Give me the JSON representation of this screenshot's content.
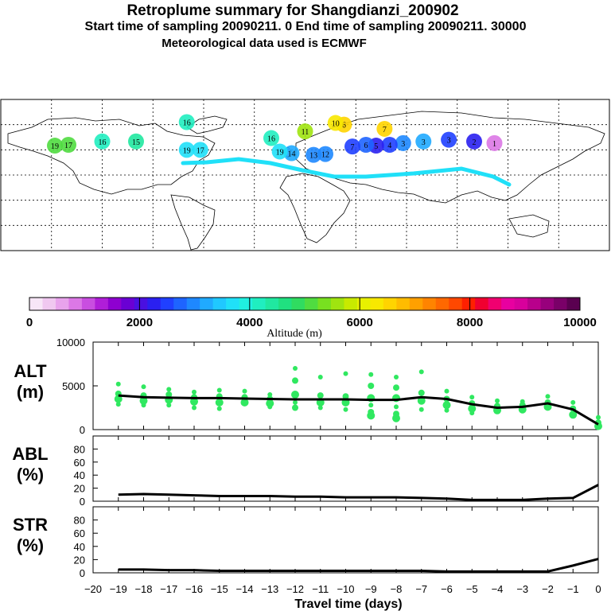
{
  "header": {
    "title": "Retroplume summary for Shangdianzi_200902",
    "sampling": "Start time of sampling 20090211.     0     End time of sampling 20090211. 30000",
    "met": "Meteorological data used is ECMWF"
  },
  "map": {
    "description_points": [
      {
        "label": "3",
        "lon": 85,
        "lat": 42,
        "alt": 2500
      },
      {
        "label": "3",
        "lon": 70,
        "lat": 40,
        "alt": 3200
      },
      {
        "label": "3",
        "lon": 58,
        "lat": 38,
        "alt": 3000
      },
      {
        "label": "2",
        "lon": 100,
        "lat": 40,
        "alt": 2200
      },
      {
        "label": "1",
        "lon": 112,
        "lat": 38,
        "alt": 900
      },
      {
        "label": "4",
        "lon": 50,
        "lat": 36,
        "alt": 2600
      },
      {
        "label": "5",
        "lon": 42,
        "lat": 35,
        "alt": 2300
      },
      {
        "label": "6",
        "lon": 36,
        "lat": 36,
        "alt": 2800
      },
      {
        "label": "7",
        "lon": 28,
        "lat": 34,
        "alt": 2500
      },
      {
        "label": "7",
        "lon": 47,
        "lat": 55,
        "alt": 6500
      },
      {
        "label": "6",
        "lon": 23,
        "lat": 60,
        "alt": 6500
      },
      {
        "label": "10",
        "lon": 18,
        "lat": 62,
        "alt": 6200
      },
      {
        "label": "11",
        "lon": 0,
        "lat": 52,
        "alt": 5500
      },
      {
        "label": "12",
        "lon": 12,
        "lat": 25,
        "alt": 3000
      },
      {
        "label": "13",
        "lon": 5,
        "lat": 24,
        "alt": 3000
      },
      {
        "label": "14",
        "lon": -8,
        "lat": 26,
        "alt": 3200
      },
      {
        "label": "19",
        "lon": -15,
        "lat": 28,
        "alt": 3800
      },
      {
        "label": "19",
        "lon": -70,
        "lat": 30,
        "alt": 3600
      },
      {
        "label": "17",
        "lon": -62,
        "lat": 30,
        "alt": 3800
      },
      {
        "label": "15",
        "lon": -100,
        "lat": 40,
        "alt": 4500
      },
      {
        "label": "16",
        "lon": -120,
        "lat": 40,
        "alt": 4200
      },
      {
        "label": "16",
        "lon": -70,
        "lat": 63,
        "alt": 4200
      },
      {
        "label": "16",
        "lon": -20,
        "lat": 44,
        "alt": 4200
      },
      {
        "label": "19",
        "lon": -148,
        "lat": 35,
        "alt": 5200
      },
      {
        "label": "17",
        "lon": -140,
        "lat": 36,
        "alt": 5200
      }
    ]
  },
  "colorbar": {
    "ticks": [
      "0",
      "2000",
      "4000",
      "6000",
      "8000",
      "10000"
    ],
    "label": "Altitude (m)"
  },
  "panels": {
    "alt": {
      "label1": "ALT",
      "label2": "(m)",
      "yticks": [
        "10000",
        "5000",
        "0"
      ]
    },
    "abl": {
      "label1": "ABL",
      "label2": "(%)",
      "yticks": [
        "80",
        "60",
        "40",
        "20",
        "0"
      ]
    },
    "str": {
      "label1": "STR",
      "label2": "(%)",
      "yticks": [
        "80",
        "60",
        "40",
        "20",
        "0"
      ]
    }
  },
  "xaxis": {
    "ticks": [
      "−20",
      "−19",
      "−18",
      "−17",
      "−16",
      "−15",
      "−14",
      "−13",
      "−12",
      "−11",
      "−10",
      "−9",
      "−8",
      "−7",
      "−6",
      "−5",
      "−4",
      "−3",
      "−2",
      "−1",
      "0"
    ],
    "label": "Travel time (days)"
  },
  "chart_data": [
    {
      "type": "line",
      "title": "ALT (m)",
      "xlabel": "Travel time (days)",
      "ylabel": "Altitude (m)",
      "xlim": [
        -20,
        0
      ],
      "ylim": [
        0,
        10000
      ],
      "x": [
        -19,
        -18,
        -17,
        -16,
        -15,
        -14,
        -13,
        -12,
        -11,
        -10,
        -9,
        -8,
        -7,
        -6,
        -5,
        -4,
        -3,
        -2,
        -1,
        0
      ],
      "series": [
        {
          "name": "mean altitude",
          "values": [
            3900,
            3700,
            3650,
            3600,
            3600,
            3550,
            3500,
            3450,
            3450,
            3450,
            3400,
            3400,
            3700,
            3500,
            2900,
            2500,
            2600,
            3000,
            2300,
            600
          ]
        }
      ],
      "scatter": [
        {
          "x": -19,
          "y": [
            5200,
            4100,
            3500,
            2900
          ]
        },
        {
          "x": -18,
          "y": [
            4900,
            3900,
            3300,
            2800
          ]
        },
        {
          "x": -17,
          "y": [
            4600,
            4000,
            3400,
            2800
          ]
        },
        {
          "x": -16,
          "y": [
            4300,
            3700,
            3200,
            2500
          ]
        },
        {
          "x": -15,
          "y": [
            4500,
            3800,
            3100,
            2400
          ]
        },
        {
          "x": -14,
          "y": [
            4400,
            3700,
            3100
          ]
        },
        {
          "x": -13,
          "y": [
            4000,
            3500,
            3000,
            2600
          ]
        },
        {
          "x": -12,
          "y": [
            7000,
            5600,
            4000,
            3100,
            2500
          ]
        },
        {
          "x": -11,
          "y": [
            6000,
            3900,
            3100,
            2500
          ]
        },
        {
          "x": -10,
          "y": [
            6400,
            3800,
            3100,
            2300
          ]
        },
        {
          "x": -9,
          "y": [
            6300,
            5000,
            3600,
            2800,
            2000,
            1600
          ]
        },
        {
          "x": -8,
          "y": [
            6000,
            4800,
            3600,
            2600,
            1800,
            1300
          ]
        },
        {
          "x": -7,
          "y": [
            6600,
            4200,
            3300,
            2300
          ]
        },
        {
          "x": -6,
          "y": [
            4400,
            3500,
            2800,
            2200
          ]
        },
        {
          "x": -5,
          "y": [
            3700,
            3000,
            2400,
            1900
          ]
        },
        {
          "x": -4,
          "y": [
            3300,
            2700,
            2200
          ]
        },
        {
          "x": -3,
          "y": [
            3200,
            2800,
            2300
          ]
        },
        {
          "x": -2,
          "y": [
            3800,
            3100,
            2600
          ]
        },
        {
          "x": -1,
          "y": [
            3100,
            2400,
            1700
          ]
        },
        {
          "x": 0,
          "y": [
            1400,
            800,
            400
          ]
        }
      ]
    },
    {
      "type": "line",
      "title": "ABL (%)",
      "xlim": [
        -20,
        0
      ],
      "ylim": [
        0,
        100
      ],
      "x": [
        -19,
        -18,
        -17,
        -16,
        -15,
        -14,
        -13,
        -12,
        -11,
        -10,
        -9,
        -8,
        -7,
        -6,
        -5,
        -4,
        -3,
        -2,
        -1,
        0
      ],
      "series": [
        {
          "name": "ABL",
          "values": [
            10,
            11,
            10,
            9,
            8,
            8,
            8,
            7,
            7,
            6,
            6,
            6,
            5,
            4,
            2,
            2,
            2,
            4,
            5,
            25
          ]
        }
      ]
    },
    {
      "type": "line",
      "title": "STR (%)",
      "xlim": [
        -20,
        0
      ],
      "ylim": [
        0,
        100
      ],
      "x": [
        -19,
        -18,
        -17,
        -16,
        -15,
        -14,
        -13,
        -12,
        -11,
        -10,
        -9,
        -8,
        -7,
        -6,
        -5,
        -4,
        -3,
        -2,
        -1,
        0
      ],
      "series": [
        {
          "name": "STR",
          "values": [
            5,
            5,
            4,
            4,
            3,
            3,
            3,
            3,
            3,
            3,
            3,
            3,
            3,
            2,
            2,
            2,
            2,
            2,
            11,
            21
          ]
        }
      ]
    }
  ]
}
